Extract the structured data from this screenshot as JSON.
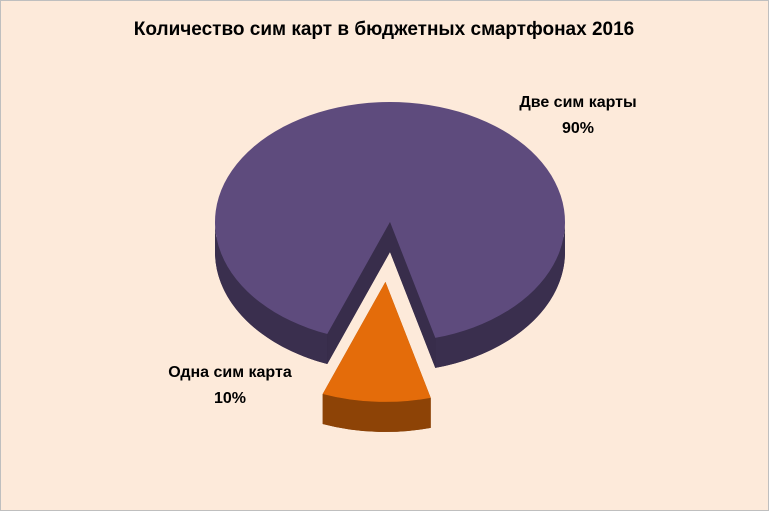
{
  "chart_data": {
    "type": "pie",
    "title": "Количество сим карт в бюджетных смартфонах 2016",
    "categories": [
      "Две сим карты",
      "Одна сим карта"
    ],
    "values": [
      90,
      10
    ],
    "value_labels": [
      "90%",
      "10%"
    ],
    "colors": [
      "#5e4b7d",
      "#e46c0a"
    ],
    "exploded": [
      false,
      true
    ]
  }
}
